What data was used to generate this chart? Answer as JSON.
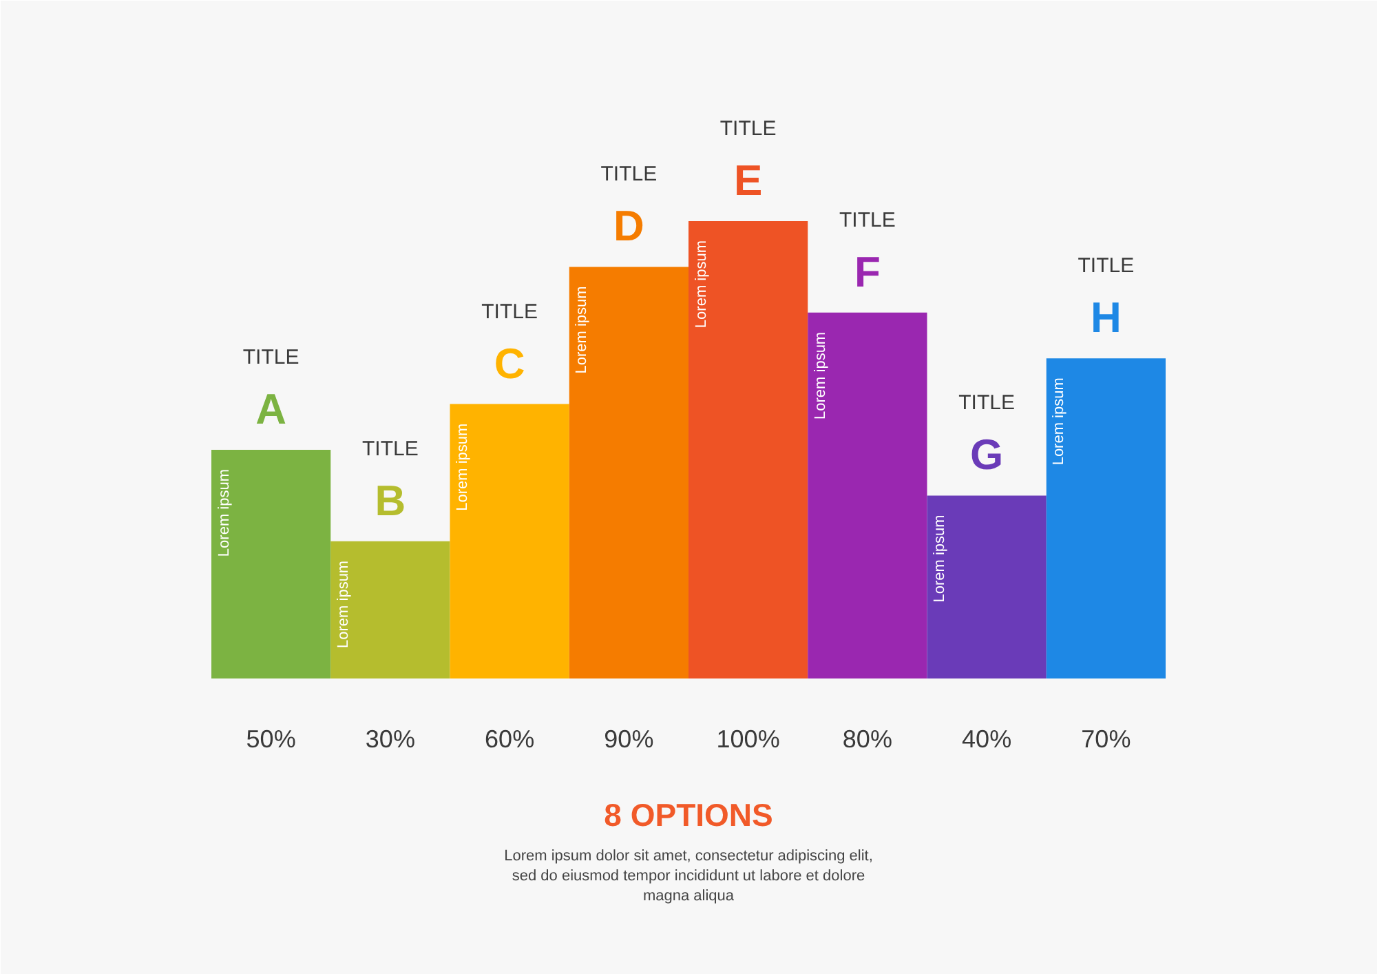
{
  "chart_data": {
    "type": "bar",
    "title": "8 OPTIONS",
    "subtitle": "Lorem ipsum dolor sit amet, consectetur adipiscing elit,\nsed do eiusmod tempor incididunt ut labore et dolore\nmagna aliqua",
    "categories": [
      "A",
      "B",
      "C",
      "D",
      "E",
      "F",
      "G",
      "H"
    ],
    "values": [
      50,
      30,
      60,
      90,
      100,
      80,
      40,
      70
    ],
    "colors": [
      "#7cb342",
      "#b5bd2e",
      "#ffb300",
      "#f57c00",
      "#ee5325",
      "#9a27b0",
      "#6a3bb8",
      "#1e88e5"
    ],
    "value_labels": [
      "50%",
      "30%",
      "60%",
      "90%",
      "100%",
      "80%",
      "40%",
      "70%"
    ],
    "annotations": [
      "TITLE",
      "TITLE",
      "TITLE",
      "TITLE",
      "TITLE",
      "TITLE",
      "TITLE",
      "TITLE",
      "Lorem ipsum",
      "Lorem ipsum",
      "Lorem ipsum",
      "Lorem ipsum",
      "Lorem ipsum",
      "Lorem ipsum",
      "Lorem ipsum",
      "Lorem ipsum"
    ]
  }
}
